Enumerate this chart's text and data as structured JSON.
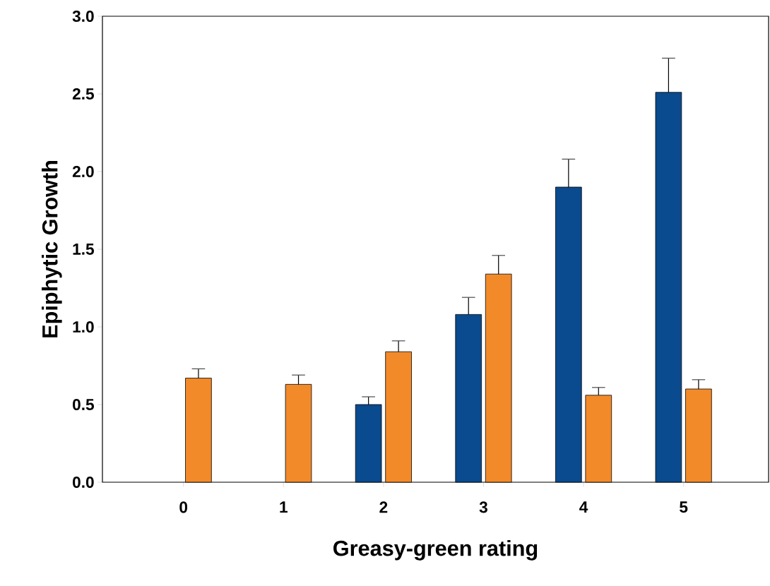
{
  "chart_data": {
    "type": "bar",
    "xlabel": "Greasy-green rating",
    "ylabel": "Epiphytic Growth",
    "categories": [
      "0",
      "1",
      "2",
      "3",
      "4",
      "5"
    ],
    "series": [
      {
        "color": "#0a4a8e",
        "values": [
          null,
          null,
          0.5,
          1.08,
          1.9,
          2.51
        ],
        "errors": [
          null,
          null,
          [
            0.5,
            0.55
          ],
          [
            1.08,
            1.19
          ],
          [
            1.9,
            2.08
          ],
          [
            2.51,
            2.73
          ]
        ]
      },
      {
        "color": "#f28a2a",
        "values": [
          0.67,
          0.63,
          0.84,
          1.34,
          0.56,
          0.6
        ],
        "errors": [
          [
            0.67,
            0.73
          ],
          [
            0.63,
            0.69
          ],
          [
            0.84,
            0.91
          ],
          [
            1.34,
            1.46
          ],
          [
            0.56,
            0.61
          ],
          [
            0.6,
            0.66
          ]
        ]
      }
    ],
    "ylim": [
      0,
      3
    ],
    "yticks": [
      {
        "value": 0,
        "label": "0.0"
      },
      {
        "value": 0.5,
        "label": "0.5"
      },
      {
        "value": 1,
        "label": "1.0"
      },
      {
        "value": 1.5,
        "label": "1.5"
      },
      {
        "value": 2,
        "label": "2.0"
      },
      {
        "value": 2.5,
        "label": "2.5"
      },
      {
        "value": 3,
        "label": "3.0"
      }
    ]
  }
}
